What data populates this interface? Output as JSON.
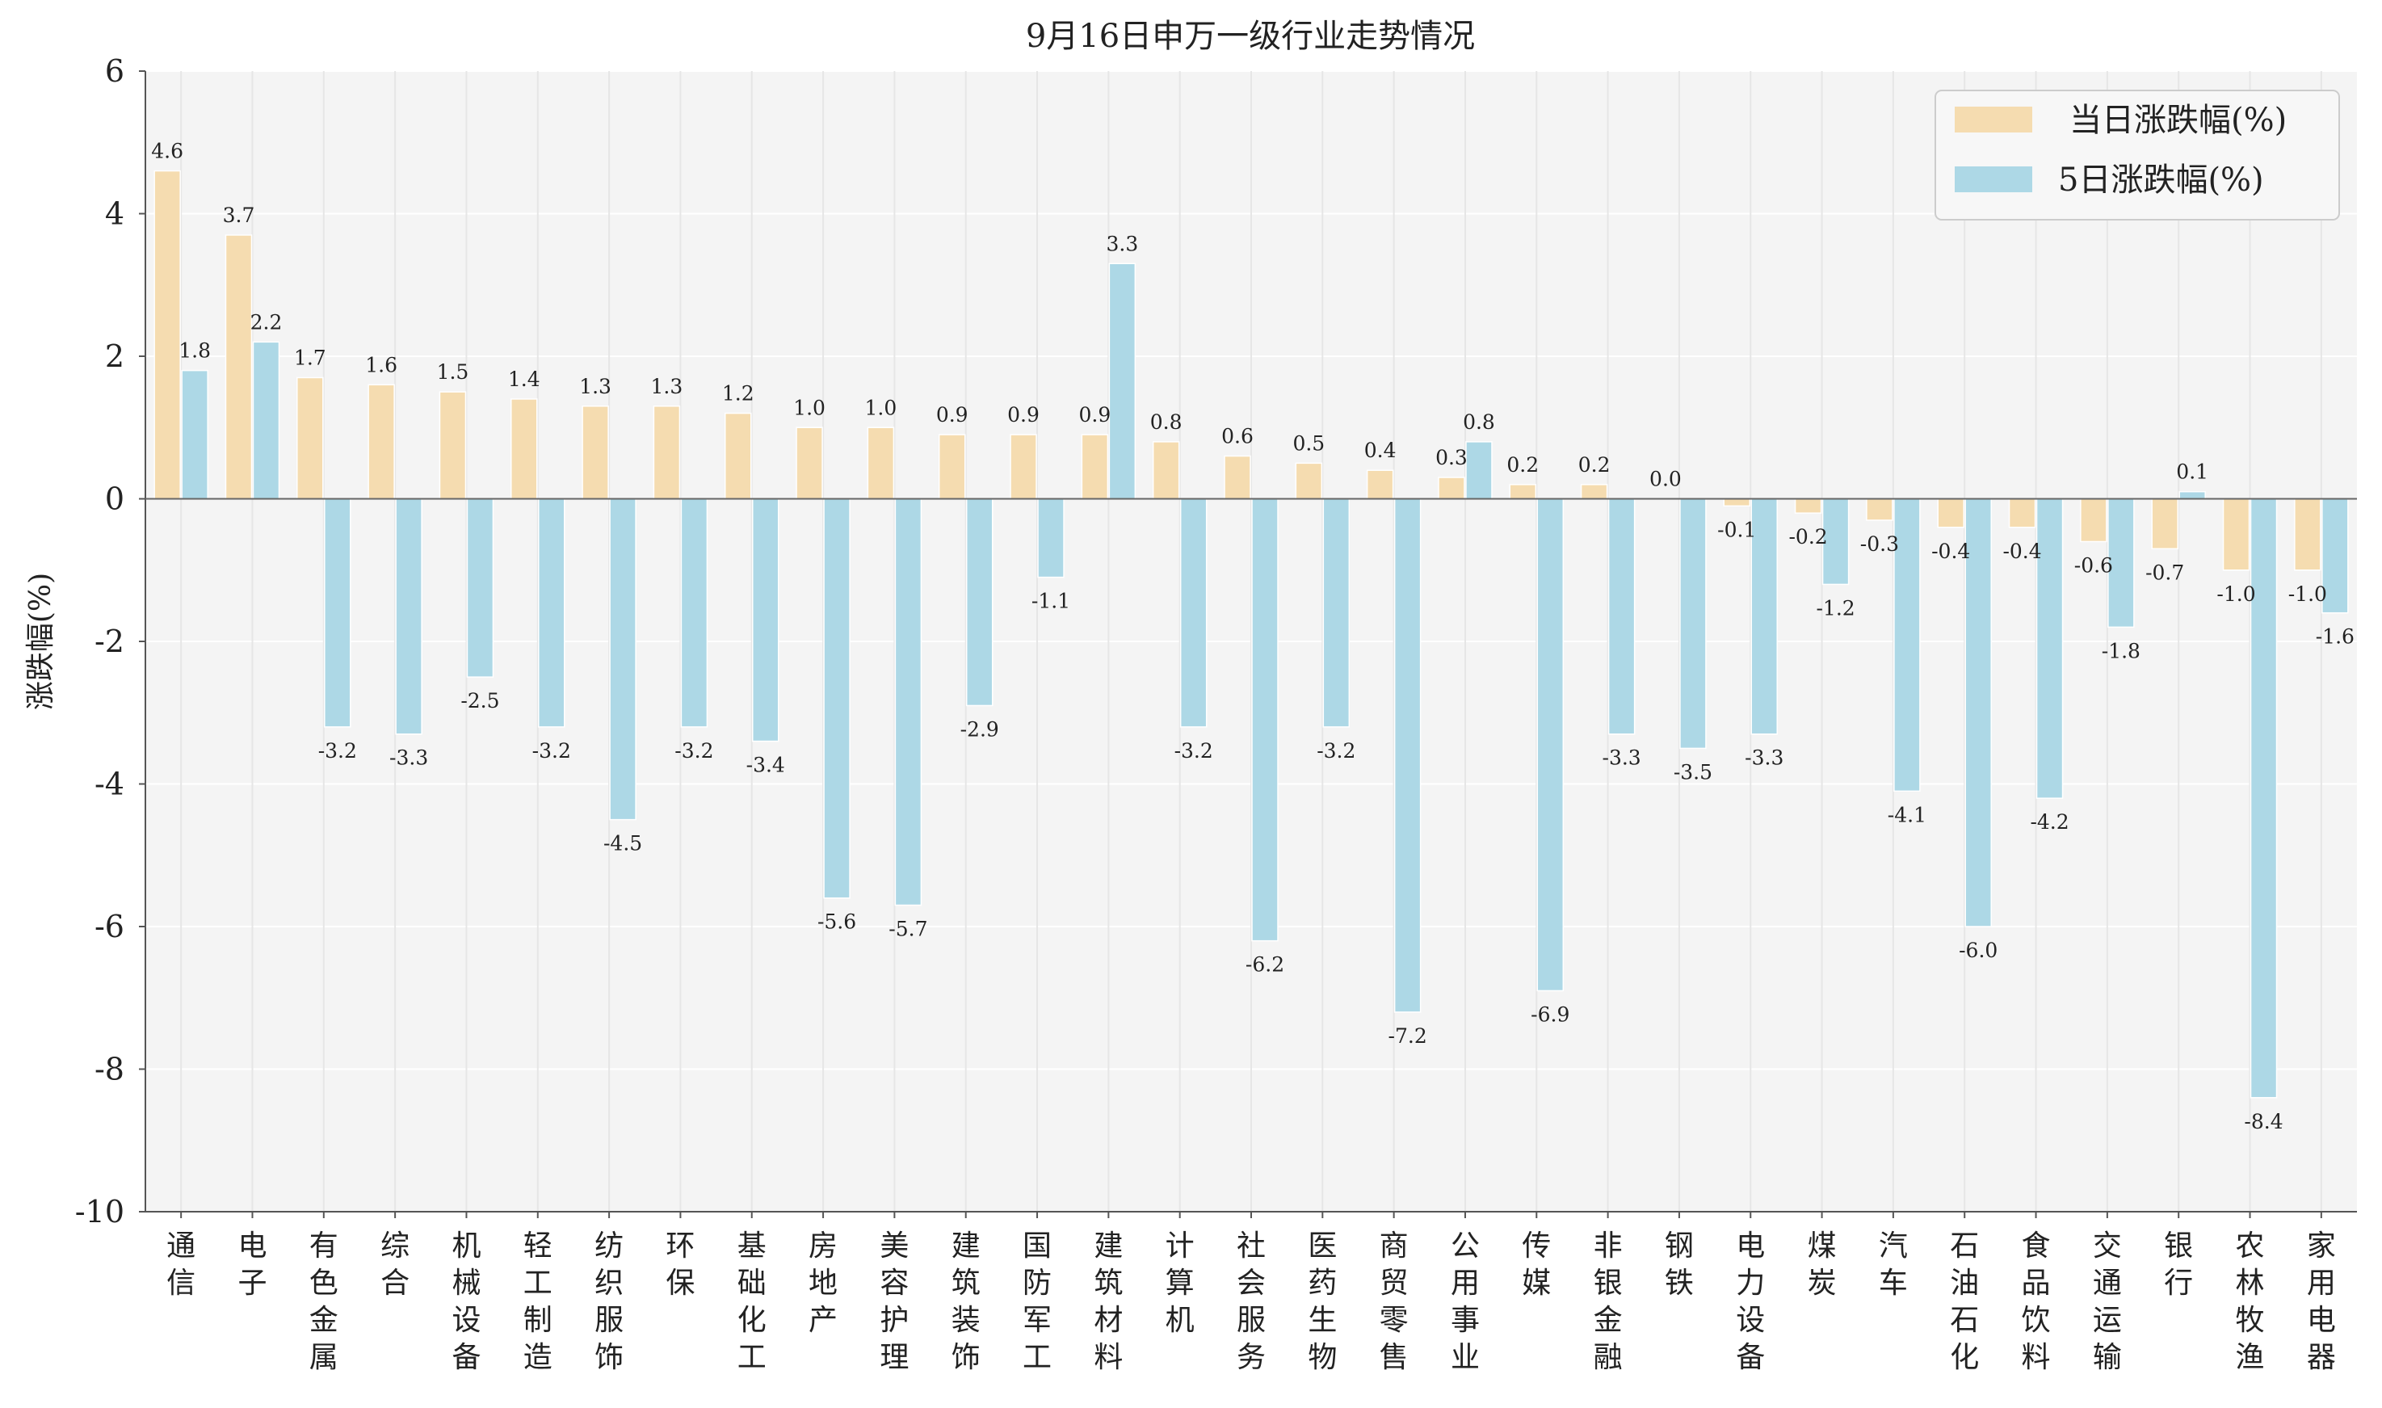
{
  "chart_data": {
    "type": "bar",
    "title": "9月16日申万一级行业走势情况",
    "ylabel": "涨跌幅(%)",
    "xlabel": "",
    "ylim": [
      -10,
      6
    ],
    "yticks": [
      6,
      4,
      2,
      0,
      -2,
      -4,
      -6,
      -8,
      -10
    ],
    "grid": true,
    "legend_position": "top-right",
    "colors": {
      "series1": "#f5dcb0",
      "series2": "#add8e6",
      "background": "#f4f4f4"
    },
    "categories": [
      "通信",
      "电子",
      "有色金属",
      "综合",
      "机械设备",
      "轻工制造",
      "纺织服饰",
      "环保",
      "基础化工",
      "房地产",
      "美容护理",
      "建筑装饰",
      "国防军工",
      "建筑材料",
      "计算机",
      "社会服务",
      "医药生物",
      "商贸零售",
      "公用事业",
      "传媒",
      "非银金融",
      "钢铁",
      "电力设备",
      "煤炭",
      "汽车",
      "石油石化",
      "食品饮料",
      "交通运输",
      "银行",
      "农林牧渔",
      "家用电器"
    ],
    "series": [
      {
        "name": "当日涨跌幅(%)",
        "values": [
          4.6,
          3.7,
          1.7,
          1.6,
          1.5,
          1.4,
          1.3,
          1.3,
          1.2,
          1.0,
          1.0,
          0.9,
          0.9,
          0.9,
          0.8,
          0.6,
          0.5,
          0.4,
          0.3,
          0.2,
          0.2,
          0.0,
          -0.1,
          -0.2,
          -0.3,
          -0.4,
          -0.4,
          -0.6,
          -0.7,
          -1.0,
          -1.0
        ],
        "labels": [
          "4.6",
          "3.7",
          "1.7",
          "1.6",
          "1.5",
          "1.4",
          "1.3",
          "1.3",
          "1.2",
          "1.0",
          "1.0",
          "0.9",
          "0.9",
          "0.9",
          "0.8",
          "0.6",
          "0.5",
          "0.4",
          "0.3",
          "0.2",
          "0.2",
          "0.0",
          "-0.1",
          "-0.2",
          "-0.3",
          "-0.4",
          "-0.4",
          "-0.6",
          "-0.7",
          "-1.0",
          "-1.0"
        ]
      },
      {
        "name": "5日涨跌幅(%)",
        "values": [
          1.8,
          2.2,
          -3.2,
          -3.3,
          -2.5,
          -3.2,
          -4.5,
          -3.2,
          -3.4,
          -5.6,
          -5.7,
          -2.9,
          -1.1,
          3.3,
          -3.2,
          -6.2,
          -3.2,
          -7.2,
          0.8,
          -6.9,
          -3.3,
          -3.5,
          -3.3,
          -1.2,
          -4.1,
          -6.0,
          -4.2,
          -1.8,
          0.1,
          -8.4,
          -1.6
        ],
        "labels": [
          "1.8",
          "2.2",
          "-3.2",
          "-3.3",
          "-2.5",
          "-3.2",
          "-4.5",
          "-3.2",
          "-3.4",
          "-5.6",
          "-5.7",
          "-2.9",
          "-1.1",
          "3.3",
          "-3.2",
          "-6.2",
          "-3.2",
          "-7.2",
          "0.8",
          "-6.9",
          "-3.3",
          "-3.5",
          "-3.3",
          "-1.2",
          "-4.1",
          "-6.0",
          "-4.2",
          "-1.8",
          "0.1",
          "-8.4",
          "-1.6"
        ]
      }
    ]
  }
}
